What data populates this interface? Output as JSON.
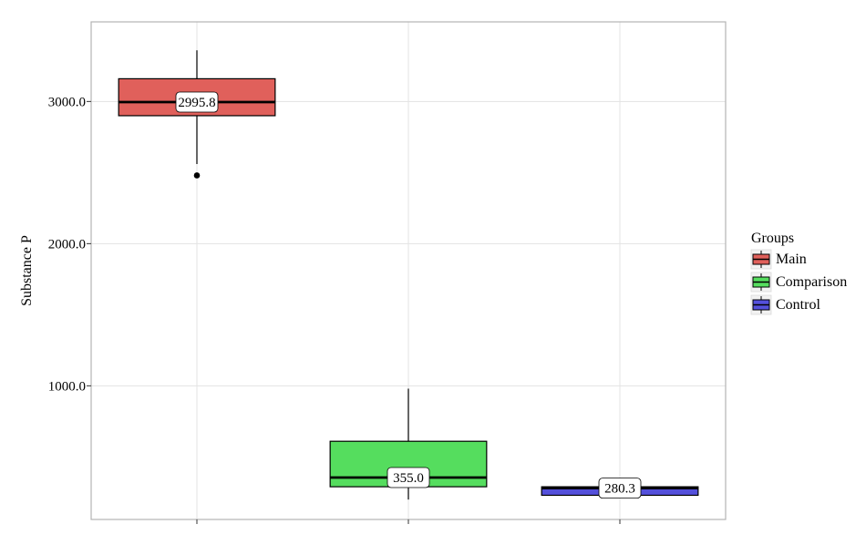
{
  "chart_data": {
    "type": "box",
    "title": "",
    "xlabel": "",
    "ylabel": "Substance P",
    "ylim": [
      60,
      3560
    ],
    "y_ticks": [
      1000,
      2000,
      3000
    ],
    "y_tick_labels": [
      "1000.0",
      "2000.0",
      "3000.0"
    ],
    "grid": true,
    "legend": {
      "title": "Groups",
      "position": "right"
    },
    "series": [
      {
        "name": "Main",
        "color": "#E0605B",
        "min": 2560,
        "q1": 2900,
        "median": 2995.8,
        "q3": 3160,
        "max": 3360,
        "outliers": [
          2480
        ],
        "median_label": "2995.8"
      },
      {
        "name": "Comparison",
        "color": "#55DD5E",
        "min": 200,
        "q1": 290,
        "median": 355.0,
        "q3": 610,
        "max": 980,
        "outliers": [],
        "median_label": "355.0"
      },
      {
        "name": "Control",
        "color": "#5450DB",
        "min": 230,
        "q1": 230,
        "median": 280.3,
        "q3": 290,
        "max": 290,
        "outliers": [],
        "median_label": "280.3"
      }
    ]
  }
}
